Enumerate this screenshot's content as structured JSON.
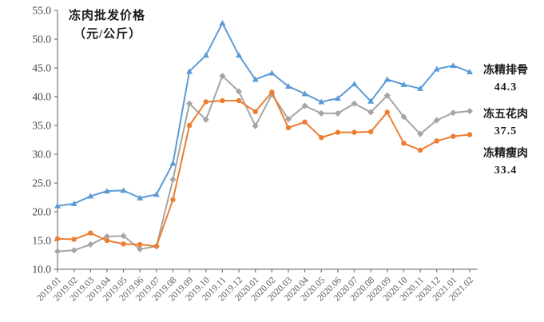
{
  "chart_data": {
    "type": "line",
    "title": "冻肉批发价格",
    "unit": "（元/公斤）",
    "ylim": [
      10.0,
      55.0
    ],
    "ytick_step": 5.0,
    "grid": false,
    "legend_position": "right-of-line-ends",
    "axis_color": "#7f7f7f",
    "ytick_label_color": "#3f3f3f",
    "xtick_label_color": "#595959",
    "categories": [
      "2019.01",
      "2019.02",
      "2019.03",
      "2019.04",
      "2019.05",
      "2019.06",
      "2019.07",
      "2019.08",
      "2019.09",
      "2019.10",
      "2019.11",
      "2019.12",
      "2020.01",
      "2020.02",
      "2020.03",
      "2020.04",
      "2020.05",
      "2020.06",
      "2020.07",
      "2020.08",
      "2020.09",
      "2020.10",
      "2020.11",
      "2020.12",
      "2021.01",
      "2021.02"
    ],
    "series": [
      {
        "name": "冻精排骨",
        "end_label": "44.3",
        "color": "#5B9BD5",
        "marker": "triangle",
        "values": [
          21.0,
          21.4,
          22.7,
          23.6,
          23.7,
          22.4,
          23.0,
          28.4,
          44.4,
          47.2,
          52.8,
          47.2,
          43.0,
          44.1,
          41.8,
          40.5,
          39.1,
          39.7,
          42.2,
          39.2,
          43.0,
          42.1,
          41.4,
          44.8,
          45.4,
          44.3
        ]
      },
      {
        "name": "冻五花肉",
        "end_label": "37.5",
        "color": "#A5A5A5",
        "marker": "diamond",
        "values": [
          13.1,
          13.3,
          14.3,
          15.7,
          15.8,
          13.5,
          14.0,
          25.6,
          38.8,
          36.0,
          43.6,
          40.9,
          34.9,
          40.4,
          36.1,
          38.4,
          37.1,
          37.1,
          38.8,
          37.3,
          40.2,
          36.5,
          33.5,
          35.9,
          37.2,
          37.5
        ]
      },
      {
        "name": "冻精瘦肉",
        "end_label": "33.4",
        "color": "#ED7D31",
        "marker": "circle",
        "values": [
          15.3,
          15.2,
          16.3,
          15.0,
          14.4,
          14.3,
          14.0,
          22.1,
          35.0,
          39.1,
          39.3,
          39.3,
          37.4,
          40.8,
          34.6,
          35.6,
          32.9,
          33.8,
          33.8,
          33.9,
          37.3,
          31.9,
          30.7,
          32.3,
          33.1,
          33.4
        ]
      }
    ]
  }
}
